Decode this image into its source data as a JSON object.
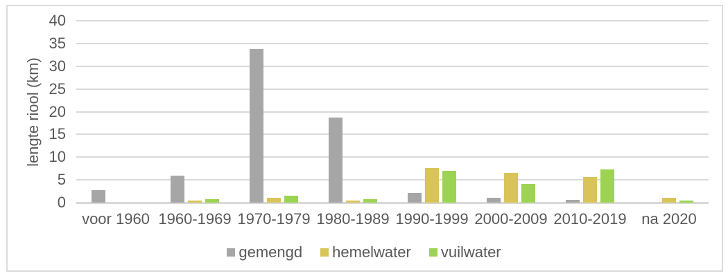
{
  "chart_data": {
    "type": "bar",
    "title": "",
    "xlabel": "",
    "ylabel": "lengte riool (km)",
    "ylim": [
      0,
      40
    ],
    "ytick_step": 5,
    "grid": true,
    "legend_position": "bottom",
    "categories": [
      "voor 1960",
      "1960-1969",
      "1970-1979",
      "1980-1989",
      "1990-1999",
      "2000-2009",
      "2010-2019",
      "na 2020"
    ],
    "series": [
      {
        "name": "gemengd",
        "color": "#A6A6A6",
        "values": [
          2.8,
          6.0,
          33.8,
          18.7,
          2.2,
          1.0,
          0.6,
          0
        ]
      },
      {
        "name": "hemelwater",
        "color": "#D8C458",
        "values": [
          0,
          0.5,
          1.0,
          0.5,
          7.6,
          6.6,
          5.7,
          1.1
        ]
      },
      {
        "name": "vuilwater",
        "color": "#9DD353",
        "values": [
          0,
          0.7,
          1.5,
          0.7,
          7.0,
          4.1,
          7.3,
          0.4
        ]
      }
    ]
  },
  "colors": {
    "text": "#595959",
    "gridline": "#D9D9D9",
    "frame_border": "#DBDBDB",
    "background": "#FFFFFF"
  }
}
